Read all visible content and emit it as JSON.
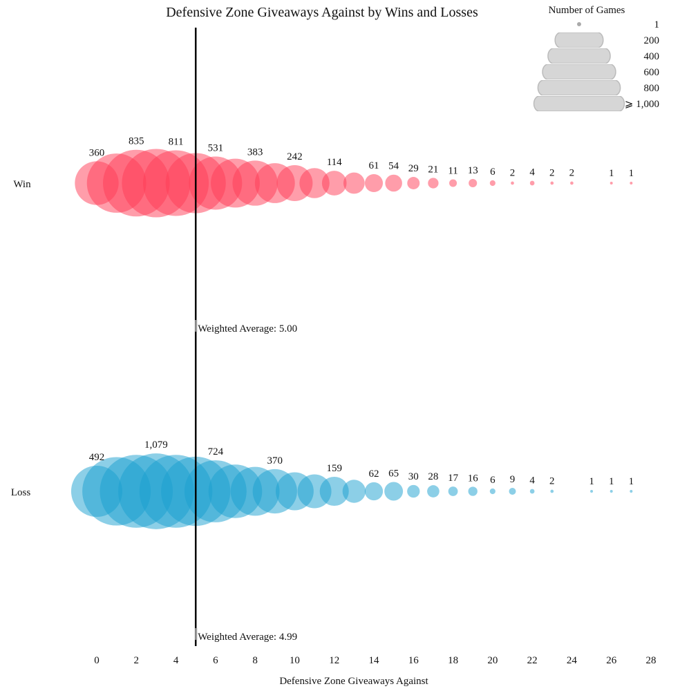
{
  "chart_data": {
    "type": "bubble",
    "title": "Defensive Zone Giveaways Against by Wins and Losses",
    "xlabel": "Defensive Zone Giveaways Against",
    "xlim": [
      0,
      28
    ],
    "x_ticks": [
      "0",
      "2",
      "4",
      "6",
      "8",
      "10",
      "12",
      "14",
      "16",
      "18",
      "20",
      "22",
      "24",
      "26",
      "28"
    ],
    "grid": false,
    "legend": {
      "title": "Number of Games",
      "placement": "top-right",
      "entries": [
        "1",
        "200",
        "400",
        "600",
        "800",
        "⩾ 1,000"
      ],
      "values": [
        1,
        200,
        400,
        600,
        800,
        1000
      ]
    },
    "series": [
      {
        "name": "Win",
        "color": "#ff3b55",
        "weighted_average": 5.0,
        "weighted_average_label": "Weighted Average: 5.00",
        "points": [
          {
            "x": 0,
            "value": 360,
            "label": "360"
          },
          {
            "x": 1,
            "value": 660,
            "label": ""
          },
          {
            "x": 2,
            "value": 835,
            "label": "835"
          },
          {
            "x": 3,
            "value": 880,
            "label": ""
          },
          {
            "x": 4,
            "value": 811,
            "label": "811"
          },
          {
            "x": 5,
            "value": 680,
            "label": ""
          },
          {
            "x": 6,
            "value": 531,
            "label": "531"
          },
          {
            "x": 7,
            "value": 450,
            "label": ""
          },
          {
            "x": 8,
            "value": 383,
            "label": "383"
          },
          {
            "x": 9,
            "value": 300,
            "label": ""
          },
          {
            "x": 10,
            "value": 242,
            "label": "242"
          },
          {
            "x": 11,
            "value": 170,
            "label": ""
          },
          {
            "x": 12,
            "value": 114,
            "label": "114"
          },
          {
            "x": 13,
            "value": 85,
            "label": ""
          },
          {
            "x": 14,
            "value": 61,
            "label": "61"
          },
          {
            "x": 15,
            "value": 54,
            "label": "54"
          },
          {
            "x": 16,
            "value": 29,
            "label": "29"
          },
          {
            "x": 17,
            "value": 21,
            "label": "21"
          },
          {
            "x": 18,
            "value": 11,
            "label": "11"
          },
          {
            "x": 19,
            "value": 13,
            "label": "13"
          },
          {
            "x": 20,
            "value": 6,
            "label": "6"
          },
          {
            "x": 21,
            "value": 2,
            "label": "2"
          },
          {
            "x": 22,
            "value": 4,
            "label": "4"
          },
          {
            "x": 23,
            "value": 2,
            "label": "2"
          },
          {
            "x": 24,
            "value": 2,
            "label": "2"
          },
          {
            "x": 26,
            "value": 1,
            "label": "1"
          },
          {
            "x": 27,
            "value": 1,
            "label": "1"
          }
        ]
      },
      {
        "name": "Loss",
        "color": "#1a9fd0",
        "weighted_average": 4.99,
        "weighted_average_label": "Weighted Average: 4.99",
        "points": [
          {
            "x": 0,
            "value": 492,
            "label": "492"
          },
          {
            "x": 1,
            "value": 880,
            "label": ""
          },
          {
            "x": 2,
            "value": 1000,
            "label": ""
          },
          {
            "x": 3,
            "value": 1079,
            "label": "1,079"
          },
          {
            "x": 4,
            "value": 1000,
            "label": ""
          },
          {
            "x": 5,
            "value": 900,
            "label": ""
          },
          {
            "x": 6,
            "value": 724,
            "label": "724"
          },
          {
            "x": 7,
            "value": 540,
            "label": ""
          },
          {
            "x": 8,
            "value": 450,
            "label": ""
          },
          {
            "x": 9,
            "value": 370,
            "label": "370"
          },
          {
            "x": 10,
            "value": 270,
            "label": ""
          },
          {
            "x": 11,
            "value": 215,
            "label": ""
          },
          {
            "x": 12,
            "value": 159,
            "label": "159"
          },
          {
            "x": 13,
            "value": 100,
            "label": ""
          },
          {
            "x": 14,
            "value": 62,
            "label": "62"
          },
          {
            "x": 15,
            "value": 65,
            "label": "65"
          },
          {
            "x": 16,
            "value": 30,
            "label": "30"
          },
          {
            "x": 17,
            "value": 28,
            "label": "28"
          },
          {
            "x": 18,
            "value": 17,
            "label": "17"
          },
          {
            "x": 19,
            "value": 16,
            "label": "16"
          },
          {
            "x": 20,
            "value": 6,
            "label": "6"
          },
          {
            "x": 21,
            "value": 9,
            "label": "9"
          },
          {
            "x": 22,
            "value": 4,
            "label": "4"
          },
          {
            "x": 23,
            "value": 2,
            "label": "2"
          },
          {
            "x": 25,
            "value": 1,
            "label": "1"
          },
          {
            "x": 26,
            "value": 1,
            "label": "1"
          },
          {
            "x": 27,
            "value": 1,
            "label": "1"
          }
        ]
      }
    ]
  }
}
